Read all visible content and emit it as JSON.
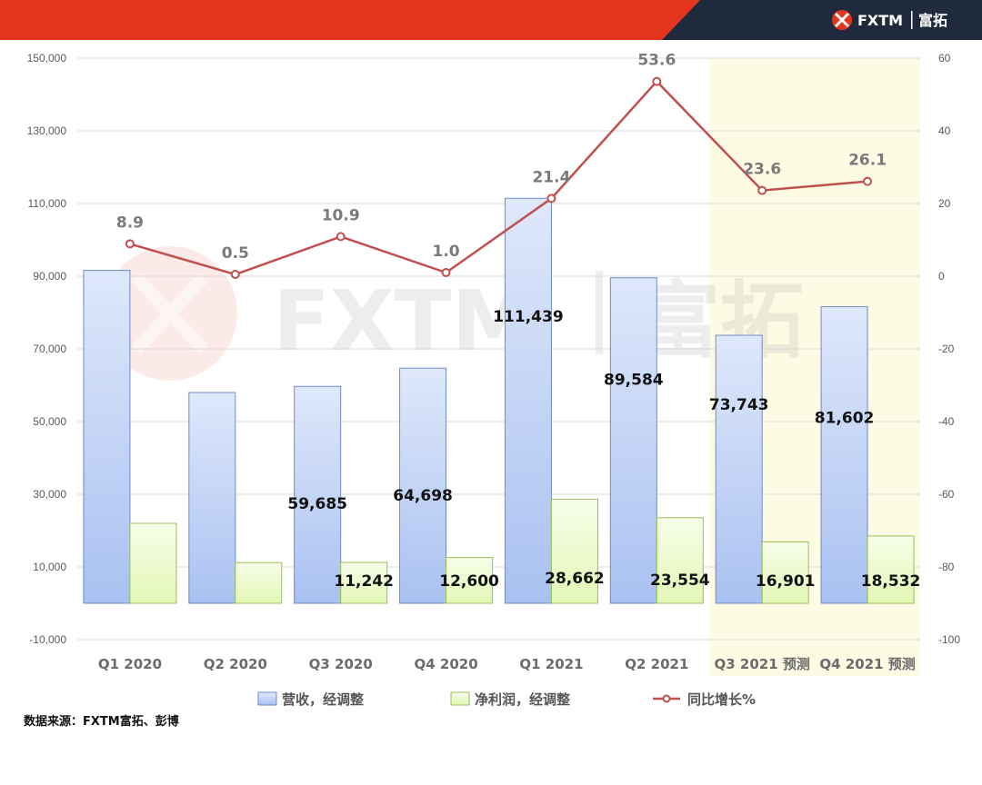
{
  "brand": {
    "logo_text": "FXTM",
    "logo_cn": "富拓",
    "header_red": "#e5351f",
    "header_navy": "#1f2a3c"
  },
  "watermark": {
    "latin": "FXTM",
    "cn": "富拓"
  },
  "source_note": "数据来源：FXTM富拓、彭博",
  "chart_data": {
    "type": "bar",
    "categories": [
      "Q1 2020",
      "Q2 2020",
      "Q3 2020",
      "Q4 2020",
      "Q1 2021",
      "Q2 2021",
      "Q3 2021 预测",
      "Q4 2021 预测"
    ],
    "forecast_categories": [
      "Q3 2021 预测",
      "Q4 2021 预测"
    ],
    "series": [
      {
        "name": "营收，经调整",
        "type": "bar",
        "axis": "left",
        "color": "#a9c1f1",
        "values": [
          91600,
          58000,
          59685,
          64698,
          111439,
          89584,
          73743,
          81602
        ],
        "data_labels": [
          "",
          "",
          "59,685",
          "64,698",
          "111,439",
          "89,584",
          "73,743",
          "81,602"
        ]
      },
      {
        "name": "净利润，经调整",
        "type": "bar",
        "axis": "left",
        "color": "#e3f7b6",
        "values": [
          22000,
          11200,
          11242,
          12600,
          28662,
          23554,
          16901,
          18532
        ],
        "data_labels": [
          "",
          "",
          "11,242",
          "12,600",
          "28,662",
          "23,554",
          "16,901",
          "18,532"
        ]
      },
      {
        "name": "同比增长%",
        "type": "line",
        "axis": "right",
        "color": "#c0504d",
        "values": [
          8.9,
          0.5,
          10.9,
          1.0,
          21.4,
          53.6,
          23.6,
          26.1
        ],
        "data_labels": [
          "8.9",
          "0.5",
          "10.9",
          "1.0",
          "21.4",
          "53.6",
          "23.6",
          "26.1"
        ]
      }
    ],
    "y_left": {
      "ylim": [
        -10000,
        150000
      ],
      "ticks": [
        -10000,
        10000,
        30000,
        50000,
        70000,
        90000,
        110000,
        130000,
        150000
      ],
      "tick_labels": [
        "-10,000",
        "10,000",
        "30,000",
        "50,000",
        "70,000",
        "90,000",
        "110,000",
        "130,000",
        "150,000"
      ]
    },
    "y_right": {
      "ylim": [
        -100,
        60
      ],
      "ticks": [
        -100,
        -80,
        -60,
        -40,
        -20,
        0,
        20,
        40,
        60
      ],
      "tick_labels": [
        "-100",
        "-80",
        "-60",
        "-40",
        "-20",
        "0",
        "20",
        "40",
        "60"
      ]
    },
    "grid": true,
    "legend_position": "bottom",
    "forecast_shade_color": "#fdfbe4"
  }
}
